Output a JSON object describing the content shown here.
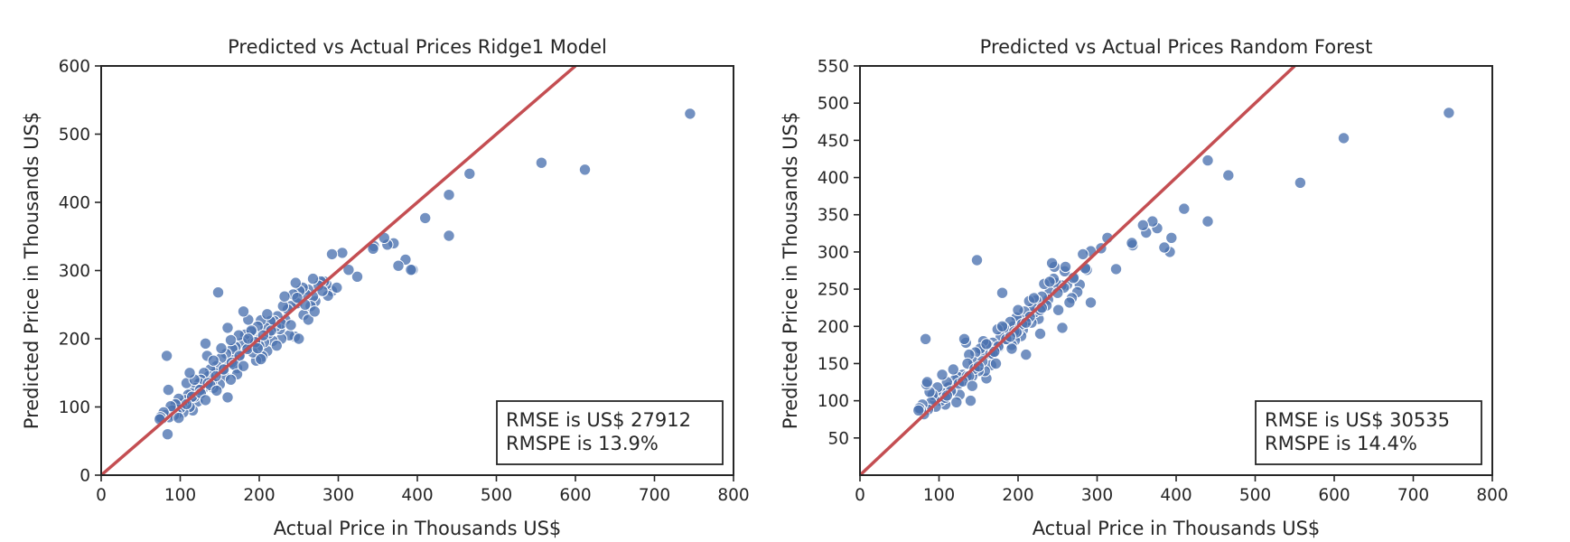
{
  "colors": {
    "point_fill": "#4c72b0",
    "point_edge": "#ffffff",
    "line": "#c44e52",
    "axes": "#262626",
    "background": "#ffffff"
  },
  "chart_data": [
    {
      "type": "scatter",
      "title": "Predicted vs Actual Prices Ridge1 Model",
      "xlabel": "Actual Price in Thousands US$",
      "ylabel": "Predicted Price in Thousands US$",
      "xlim": [
        0,
        800
      ],
      "ylim": [
        0,
        600
      ],
      "xticks": [
        0,
        100,
        200,
        300,
        400,
        500,
        600,
        700,
        800
      ],
      "yticks": [
        0,
        100,
        200,
        300,
        400,
        500,
        600
      ],
      "grid": false,
      "reference_line": "y = x",
      "annotation": [
        "RMSE is US$ 27912",
        "RMSPE is 13.9%"
      ],
      "annotation_position": "bottom-right",
      "points": [
        [
          745,
          530
        ],
        [
          612,
          448
        ],
        [
          557,
          458
        ],
        [
          466,
          442
        ],
        [
          440,
          411
        ],
        [
          440,
          351
        ],
        [
          410,
          377
        ],
        [
          394,
          301
        ],
        [
          392,
          301
        ],
        [
          385,
          316
        ],
        [
          376,
          307
        ],
        [
          370,
          340
        ],
        [
          362,
          338
        ],
        [
          358,
          348
        ],
        [
          345,
          336
        ],
        [
          344,
          332
        ],
        [
          324,
          291
        ],
        [
          313,
          301
        ],
        [
          305,
          326
        ],
        [
          292,
          324
        ],
        [
          292,
          270
        ],
        [
          287,
          263
        ],
        [
          285,
          280
        ],
        [
          282,
          284
        ],
        [
          278,
          284
        ],
        [
          275,
          278
        ],
        [
          271,
          255
        ],
        [
          268,
          262
        ],
        [
          265,
          248
        ],
        [
          262,
          272
        ],
        [
          259,
          265
        ],
        [
          256,
          235
        ],
        [
          255,
          275
        ],
        [
          251,
          270
        ],
        [
          248,
          252
        ],
        [
          246,
          282
        ],
        [
          245,
          203
        ],
        [
          243,
          265
        ],
        [
          240,
          248
        ],
        [
          238,
          205
        ],
        [
          236,
          243
        ],
        [
          233,
          228
        ],
        [
          230,
          248
        ],
        [
          228,
          200
        ],
        [
          226,
          214
        ],
        [
          223,
          233
        ],
        [
          221,
          218
        ],
        [
          219,
          226
        ],
        [
          217,
          197
        ],
        [
          214,
          226
        ],
        [
          212,
          208
        ],
        [
          210,
          182
        ],
        [
          208,
          216
        ],
        [
          206,
          195
        ],
        [
          204,
          174
        ],
        [
          202,
          227
        ],
        [
          200,
          190
        ],
        [
          198,
          218
        ],
        [
          196,
          168
        ],
        [
          194,
          204
        ],
        [
          192,
          180
        ],
        [
          190,
          210
        ],
        [
          188,
          196
        ],
        [
          186,
          228
        ],
        [
          184,
          187
        ],
        [
          182,
          206
        ],
        [
          180,
          240
        ],
        [
          178,
          194
        ],
        [
          176,
          177
        ],
        [
          174,
          205
        ],
        [
          172,
          157
        ],
        [
          170,
          188
        ],
        [
          168,
          170
        ],
        [
          166,
          185
        ],
        [
          164,
          198
        ],
        [
          162,
          165
        ],
        [
          160,
          216
        ],
        [
          158,
          178
        ],
        [
          156,
          145
        ],
        [
          154,
          155
        ],
        [
          152,
          172
        ],
        [
          150,
          133
        ],
        [
          148,
          268
        ],
        [
          146,
          160
        ],
        [
          144,
          150
        ],
        [
          142,
          128
        ],
        [
          140,
          137
        ],
        [
          138,
          155
        ],
        [
          136,
          145
        ],
        [
          134,
          175
        ],
        [
          132,
          193
        ],
        [
          130,
          150
        ],
        [
          128,
          125
        ],
        [
          126,
          140
        ],
        [
          124,
          135
        ],
        [
          122,
          108
        ],
        [
          120,
          128
        ],
        [
          118,
          115
        ],
        [
          116,
          95
        ],
        [
          114,
          120
        ],
        [
          112,
          100
        ],
        [
          110,
          118
        ],
        [
          108,
          135
        ],
        [
          106,
          110
        ],
        [
          104,
          92
        ],
        [
          102,
          105
        ],
        [
          100,
          98
        ],
        [
          98,
          112
        ],
        [
          96,
          90
        ],
        [
          94,
          104
        ],
        [
          92,
          88
        ],
        [
          90,
          95
        ],
        [
          88,
          101
        ],
        [
          86,
          85
        ],
        [
          84,
          60
        ],
        [
          83,
          175
        ],
        [
          85,
          125
        ],
        [
          81,
          88
        ],
        [
          79,
          92
        ],
        [
          77,
          83
        ],
        [
          75,
          85
        ],
        [
          74,
          82
        ],
        [
          215,
          212
        ],
        [
          205,
          205
        ],
        [
          195,
          195
        ],
        [
          185,
          185
        ],
        [
          175,
          175
        ],
        [
          165,
          165
        ],
        [
          155,
          155
        ],
        [
          145,
          145
        ],
        [
          135,
          135
        ],
        [
          125,
          125
        ],
        [
          115,
          115
        ],
        [
          258,
          250
        ],
        [
          228,
          222
        ],
        [
          198,
          186
        ],
        [
          168,
          162
        ],
        [
          138,
          132
        ],
        [
          108,
          104
        ],
        [
          142,
          168
        ],
        [
          172,
          148
        ],
        [
          262,
          228
        ],
        [
          232,
          262
        ],
        [
          118,
          140
        ],
        [
          160,
          114
        ],
        [
          190,
          212
        ],
        [
          250,
          200
        ],
        [
          280,
          270
        ],
        [
          210,
          236
        ],
        [
          180,
          160
        ],
        [
          152,
          186
        ],
        [
          126,
          120
        ],
        [
          98,
          84
        ],
        [
          112,
          150
        ],
        [
          270,
          240
        ],
        [
          240,
          220
        ],
        [
          222,
          190
        ],
        [
          202,
          170
        ],
        [
          186,
          200
        ],
        [
          164,
          140
        ],
        [
          146,
          124
        ],
        [
          132,
          110
        ],
        [
          248,
          260
        ],
        [
          268,
          288
        ],
        [
          298,
          275
        ]
      ]
    },
    {
      "type": "scatter",
      "title": "Predicted vs Actual Prices Random Forest",
      "xlabel": "Actual Price in Thousands US$",
      "ylabel": "Predicted Price in Thousands US$",
      "xlim": [
        0,
        800
      ],
      "ylim": [
        0,
        550
      ],
      "xticks": [
        0,
        100,
        200,
        300,
        400,
        500,
        600,
        700,
        800
      ],
      "yticks": [
        50,
        100,
        150,
        200,
        250,
        300,
        350,
        400,
        450,
        500,
        550
      ],
      "grid": false,
      "reference_line": "y = x",
      "annotation": [
        "RMSE is US$ 30535",
        "RMSPE is 14.4%"
      ],
      "annotation_position": "bottom-right",
      "points": [
        [
          745,
          487
        ],
        [
          612,
          453
        ],
        [
          557,
          393
        ],
        [
          466,
          403
        ],
        [
          440,
          423
        ],
        [
          440,
          341
        ],
        [
          410,
          358
        ],
        [
          394,
          319
        ],
        [
          392,
          300
        ],
        [
          385,
          306
        ],
        [
          376,
          332
        ],
        [
          370,
          341
        ],
        [
          362,
          326
        ],
        [
          358,
          336
        ],
        [
          345,
          309
        ],
        [
          344,
          312
        ],
        [
          324,
          277
        ],
        [
          313,
          319
        ],
        [
          305,
          305
        ],
        [
          292,
          301
        ],
        [
          292,
          232
        ],
        [
          287,
          276
        ],
        [
          285,
          278
        ],
        [
          282,
          297
        ],
        [
          278,
          256
        ],
        [
          275,
          246
        ],
        [
          271,
          266
        ],
        [
          268,
          238
        ],
        [
          265,
          232
        ],
        [
          262,
          256
        ],
        [
          259,
          274
        ],
        [
          256,
          198
        ],
        [
          255,
          255
        ],
        [
          251,
          222
        ],
        [
          248,
          258
        ],
        [
          246,
          280
        ],
        [
          245,
          264
        ],
        [
          243,
          285
        ],
        [
          240,
          246
        ],
        [
          238,
          236
        ],
        [
          236,
          228
        ],
        [
          233,
          257
        ],
        [
          230,
          240
        ],
        [
          228,
          190
        ],
        [
          226,
          210
        ],
        [
          223,
          235
        ],
        [
          221,
          219
        ],
        [
          219,
          225
        ],
        [
          217,
          205
        ],
        [
          214,
          234
        ],
        [
          212,
          208
        ],
        [
          210,
          162
        ],
        [
          208,
          220
        ],
        [
          206,
          195
        ],
        [
          204,
          187
        ],
        [
          202,
          210
        ],
        [
          200,
          194
        ],
        [
          198,
          212
        ],
        [
          196,
          181
        ],
        [
          194,
          200
        ],
        [
          192,
          175
        ],
        [
          190,
          206
        ],
        [
          188,
          190
        ],
        [
          186,
          182
        ],
        [
          184,
          192
        ],
        [
          182,
          198
        ],
        [
          180,
          245
        ],
        [
          178,
          186
        ],
        [
          176,
          172
        ],
        [
          174,
          196
        ],
        [
          172,
          170
        ],
        [
          170,
          168
        ],
        [
          168,
          178
        ],
        [
          166,
          148
        ],
        [
          164,
          164
        ],
        [
          162,
          175
        ],
        [
          160,
          130
        ],
        [
          158,
          140
        ],
        [
          156,
          180
        ],
        [
          154,
          166
        ],
        [
          152,
          170
        ],
        [
          150,
          140
        ],
        [
          148,
          289
        ],
        [
          146,
          165
        ],
        [
          144,
          152
        ],
        [
          142,
          133
        ],
        [
          140,
          100
        ],
        [
          138,
          162
        ],
        [
          136,
          150
        ],
        [
          134,
          178
        ],
        [
          132,
          183
        ],
        [
          130,
          135
        ],
        [
          128,
          125
        ],
        [
          126,
          108
        ],
        [
          124,
          132
        ],
        [
          122,
          98
        ],
        [
          120,
          128
        ],
        [
          118,
          142
        ],
        [
          116,
          115
        ],
        [
          114,
          120
        ],
        [
          112,
          118
        ],
        [
          110,
          125
        ],
        [
          108,
          95
        ],
        [
          106,
          110
        ],
        [
          104,
          135
        ],
        [
          102,
          100
        ],
        [
          100,
          105
        ],
        [
          98,
          118
        ],
        [
          96,
          92
        ],
        [
          94,
          102
        ],
        [
          92,
          108
        ],
        [
          90,
          98
        ],
        [
          88,
          112
        ],
        [
          86,
          88
        ],
        [
          84,
          122
        ],
        [
          83,
          183
        ],
        [
          85,
          125
        ],
        [
          81,
          82
        ],
        [
          79,
          95
        ],
        [
          77,
          88
        ],
        [
          75,
          90
        ],
        [
          74,
          87
        ],
        [
          215,
          213
        ],
        [
          205,
          203
        ],
        [
          195,
          193
        ],
        [
          185,
          183
        ],
        [
          175,
          173
        ],
        [
          165,
          163
        ],
        [
          155,
          153
        ],
        [
          145,
          143
        ],
        [
          135,
          133
        ],
        [
          125,
          123
        ],
        [
          115,
          113
        ],
        [
          258,
          252
        ],
        [
          228,
          222
        ],
        [
          198,
          192
        ],
        [
          168,
          163
        ],
        [
          138,
          133
        ],
        [
          108,
          104
        ],
        [
          270,
          265
        ],
        [
          250,
          245
        ],
        [
          230,
          225
        ],
        [
          210,
          205
        ],
        [
          190,
          186
        ],
        [
          170,
          166
        ],
        [
          150,
          146
        ],
        [
          130,
          126
        ],
        [
          110,
          107
        ],
        [
          160,
          176
        ],
        [
          180,
          200
        ],
        [
          200,
          222
        ],
        [
          220,
          238
        ],
        [
          240,
          260
        ],
        [
          260,
          280
        ],
        [
          142,
          120
        ],
        [
          172,
          150
        ],
        [
          192,
          170
        ]
      ]
    }
  ]
}
